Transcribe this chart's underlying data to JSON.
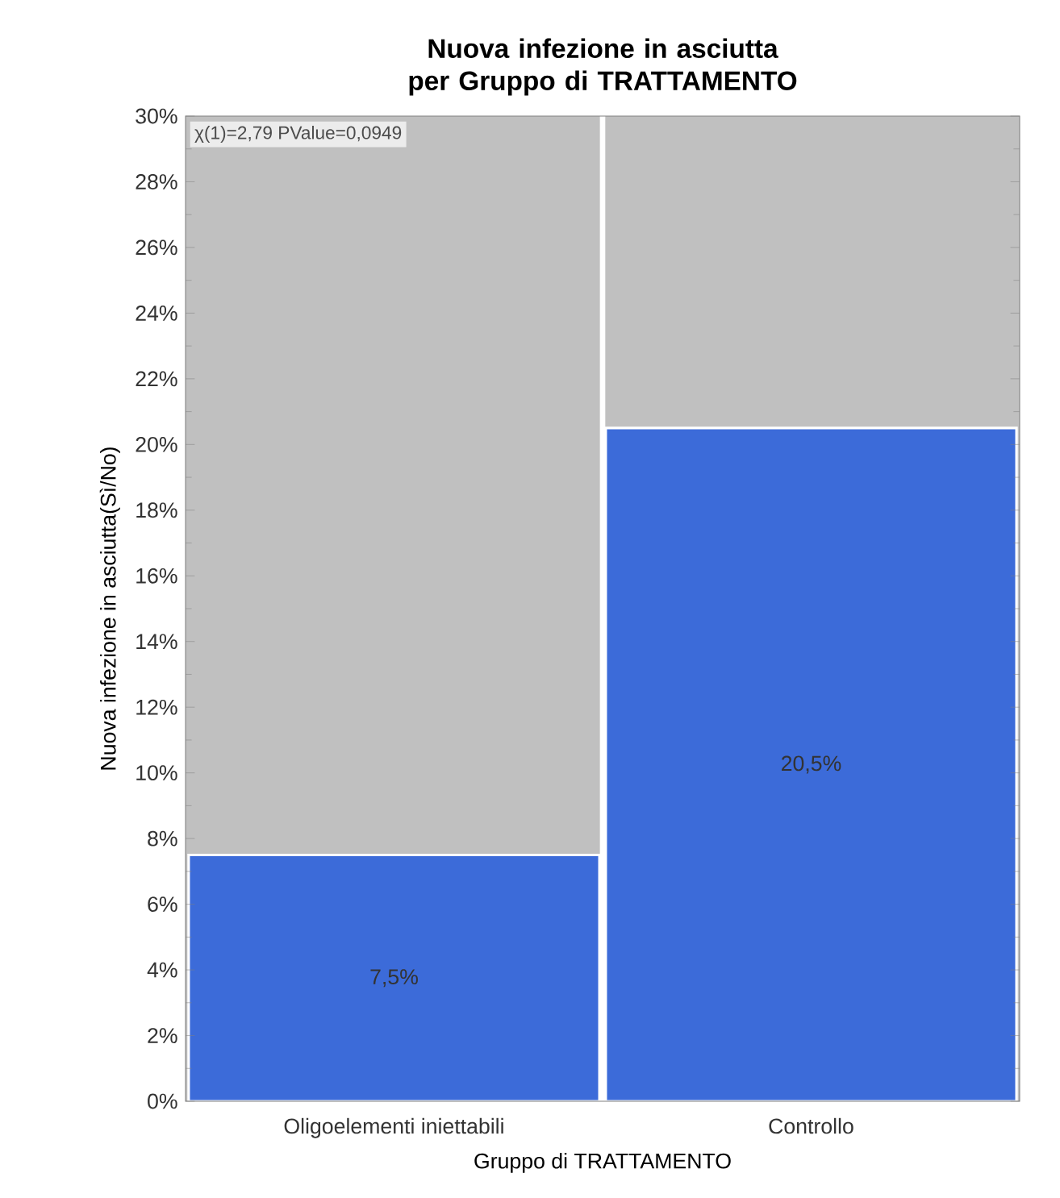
{
  "chart_data": {
    "type": "bar",
    "title": "Nuova infezione in asciutta per Gruppo di TRATTAMENTO",
    "xlabel": "Gruppo di TRATTAMENTO",
    "ylabel": "Nuova infezione in asciutta(Sì/No)",
    "categories": [
      "Oligoelementi iniettabili",
      "Controllo"
    ],
    "values": [
      7.5,
      20.5
    ],
    "value_labels": [
      "7,5%",
      "20,5%"
    ],
    "color": "#3c6bd9",
    "ylim": [
      0,
      30
    ],
    "yticks": [
      {
        "value": 0,
        "label": "0%"
      },
      {
        "value": 2,
        "label": "2%"
      },
      {
        "value": 4,
        "label": "4%"
      },
      {
        "value": 6,
        "label": "6%"
      },
      {
        "value": 8,
        "label": "8%"
      },
      {
        "value": 10,
        "label": "10%"
      },
      {
        "value": 12,
        "label": "12%"
      },
      {
        "value": 14,
        "label": "14%"
      },
      {
        "value": 16,
        "label": "16%"
      },
      {
        "value": 18,
        "label": "18%"
      },
      {
        "value": 20,
        "label": "20%"
      },
      {
        "value": 22,
        "label": "22%"
      },
      {
        "value": 24,
        "label": "24%"
      },
      {
        "value": 26,
        "label": "26%"
      },
      {
        "value": 28,
        "label": "28%"
      },
      {
        "value": 30,
        "label": "30%"
      }
    ],
    "annotations": [
      "χ(1)=2,79 PValue=0,0949"
    ],
    "grid": false
  }
}
